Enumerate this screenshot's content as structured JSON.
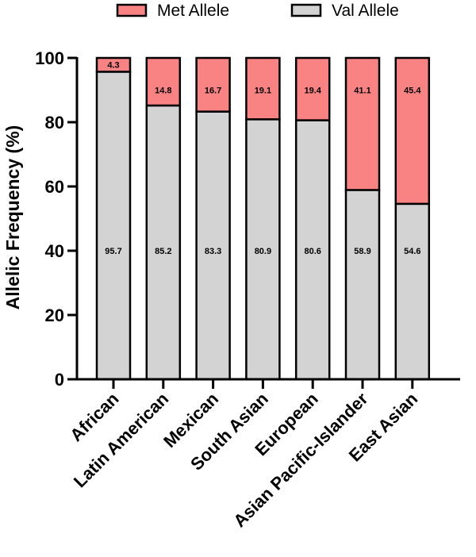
{
  "chart_data": {
    "type": "bar",
    "stacked": true,
    "categories": [
      "African",
      "Latin American",
      "Mexican",
      "South Asian",
      "European",
      "Asian Pacific-Islander",
      "East Asian"
    ],
    "series": [
      {
        "name": "Val Allele",
        "color": "#d3d3d3",
        "values": [
          95.7,
          85.2,
          83.3,
          80.9,
          80.6,
          58.9,
          54.6
        ],
        "labels": [
          "95.7",
          "85.2",
          "83.3",
          "80.9",
          "80.6",
          "58.9",
          "54.6"
        ]
      },
      {
        "name": "Met Allele",
        "color": "#f98282",
        "values": [
          4.3,
          14.8,
          16.7,
          19.1,
          19.4,
          41.1,
          45.4
        ],
        "labels": [
          "4.3",
          "14.8",
          "16.7",
          "19.1",
          "19.4",
          "41.1",
          "45.4"
        ]
      }
    ],
    "legend": [
      "Met Allele",
      "Val Allele"
    ],
    "legend_placement": "top",
    "ylabel": "Allelic Frequency (%)",
    "xlabel": "",
    "ylim": [
      0,
      100
    ],
    "yticks": [
      0,
      20,
      40,
      60,
      80,
      100
    ],
    "ytick_labels": [
      "0",
      "20",
      "40",
      "60",
      "80",
      "100"
    ],
    "grid": false
  }
}
